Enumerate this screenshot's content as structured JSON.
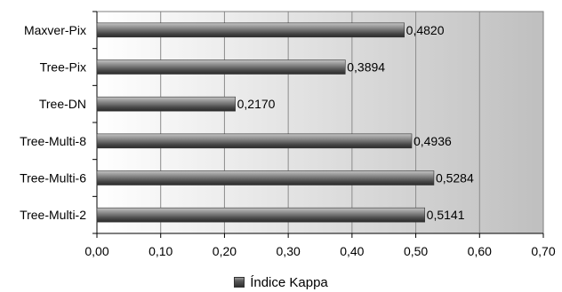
{
  "chart_data": {
    "type": "bar",
    "orientation": "horizontal",
    "categories": [
      "Maxver-Pix",
      "Tree-Pix",
      "Tree-DN",
      "Tree-Multi-8",
      "Tree-Multi-6",
      "Tree-Multi-2"
    ],
    "series": [
      {
        "name": "Índice Kappa",
        "values": [
          0.482,
          0.3894,
          0.217,
          0.4936,
          0.5284,
          0.5141
        ],
        "labels": [
          "0,4820",
          "0,3894",
          "0,2170",
          "0,4936",
          "0,5284",
          "0,5141"
        ]
      }
    ],
    "xlim": [
      0,
      0.7
    ],
    "x_ticks": [
      0,
      0.1,
      0.2,
      0.3,
      0.4,
      0.5,
      0.6,
      0.7
    ],
    "x_tick_labels": [
      "0,00",
      "0,10",
      "0,20",
      "0,30",
      "0,40",
      "0,50",
      "0,60",
      "0,70"
    ],
    "title": "",
    "xlabel": "",
    "ylabel": "",
    "grid": true,
    "legend_position": "bottom",
    "colors": {
      "bar_dark": "#2f2f2f",
      "bar_light": "#b0b0b0",
      "plot_bg_left": "#ffffff",
      "plot_bg_right": "#bfbfbf",
      "gridline": "#8c8c8c",
      "axis": "#000000"
    }
  }
}
